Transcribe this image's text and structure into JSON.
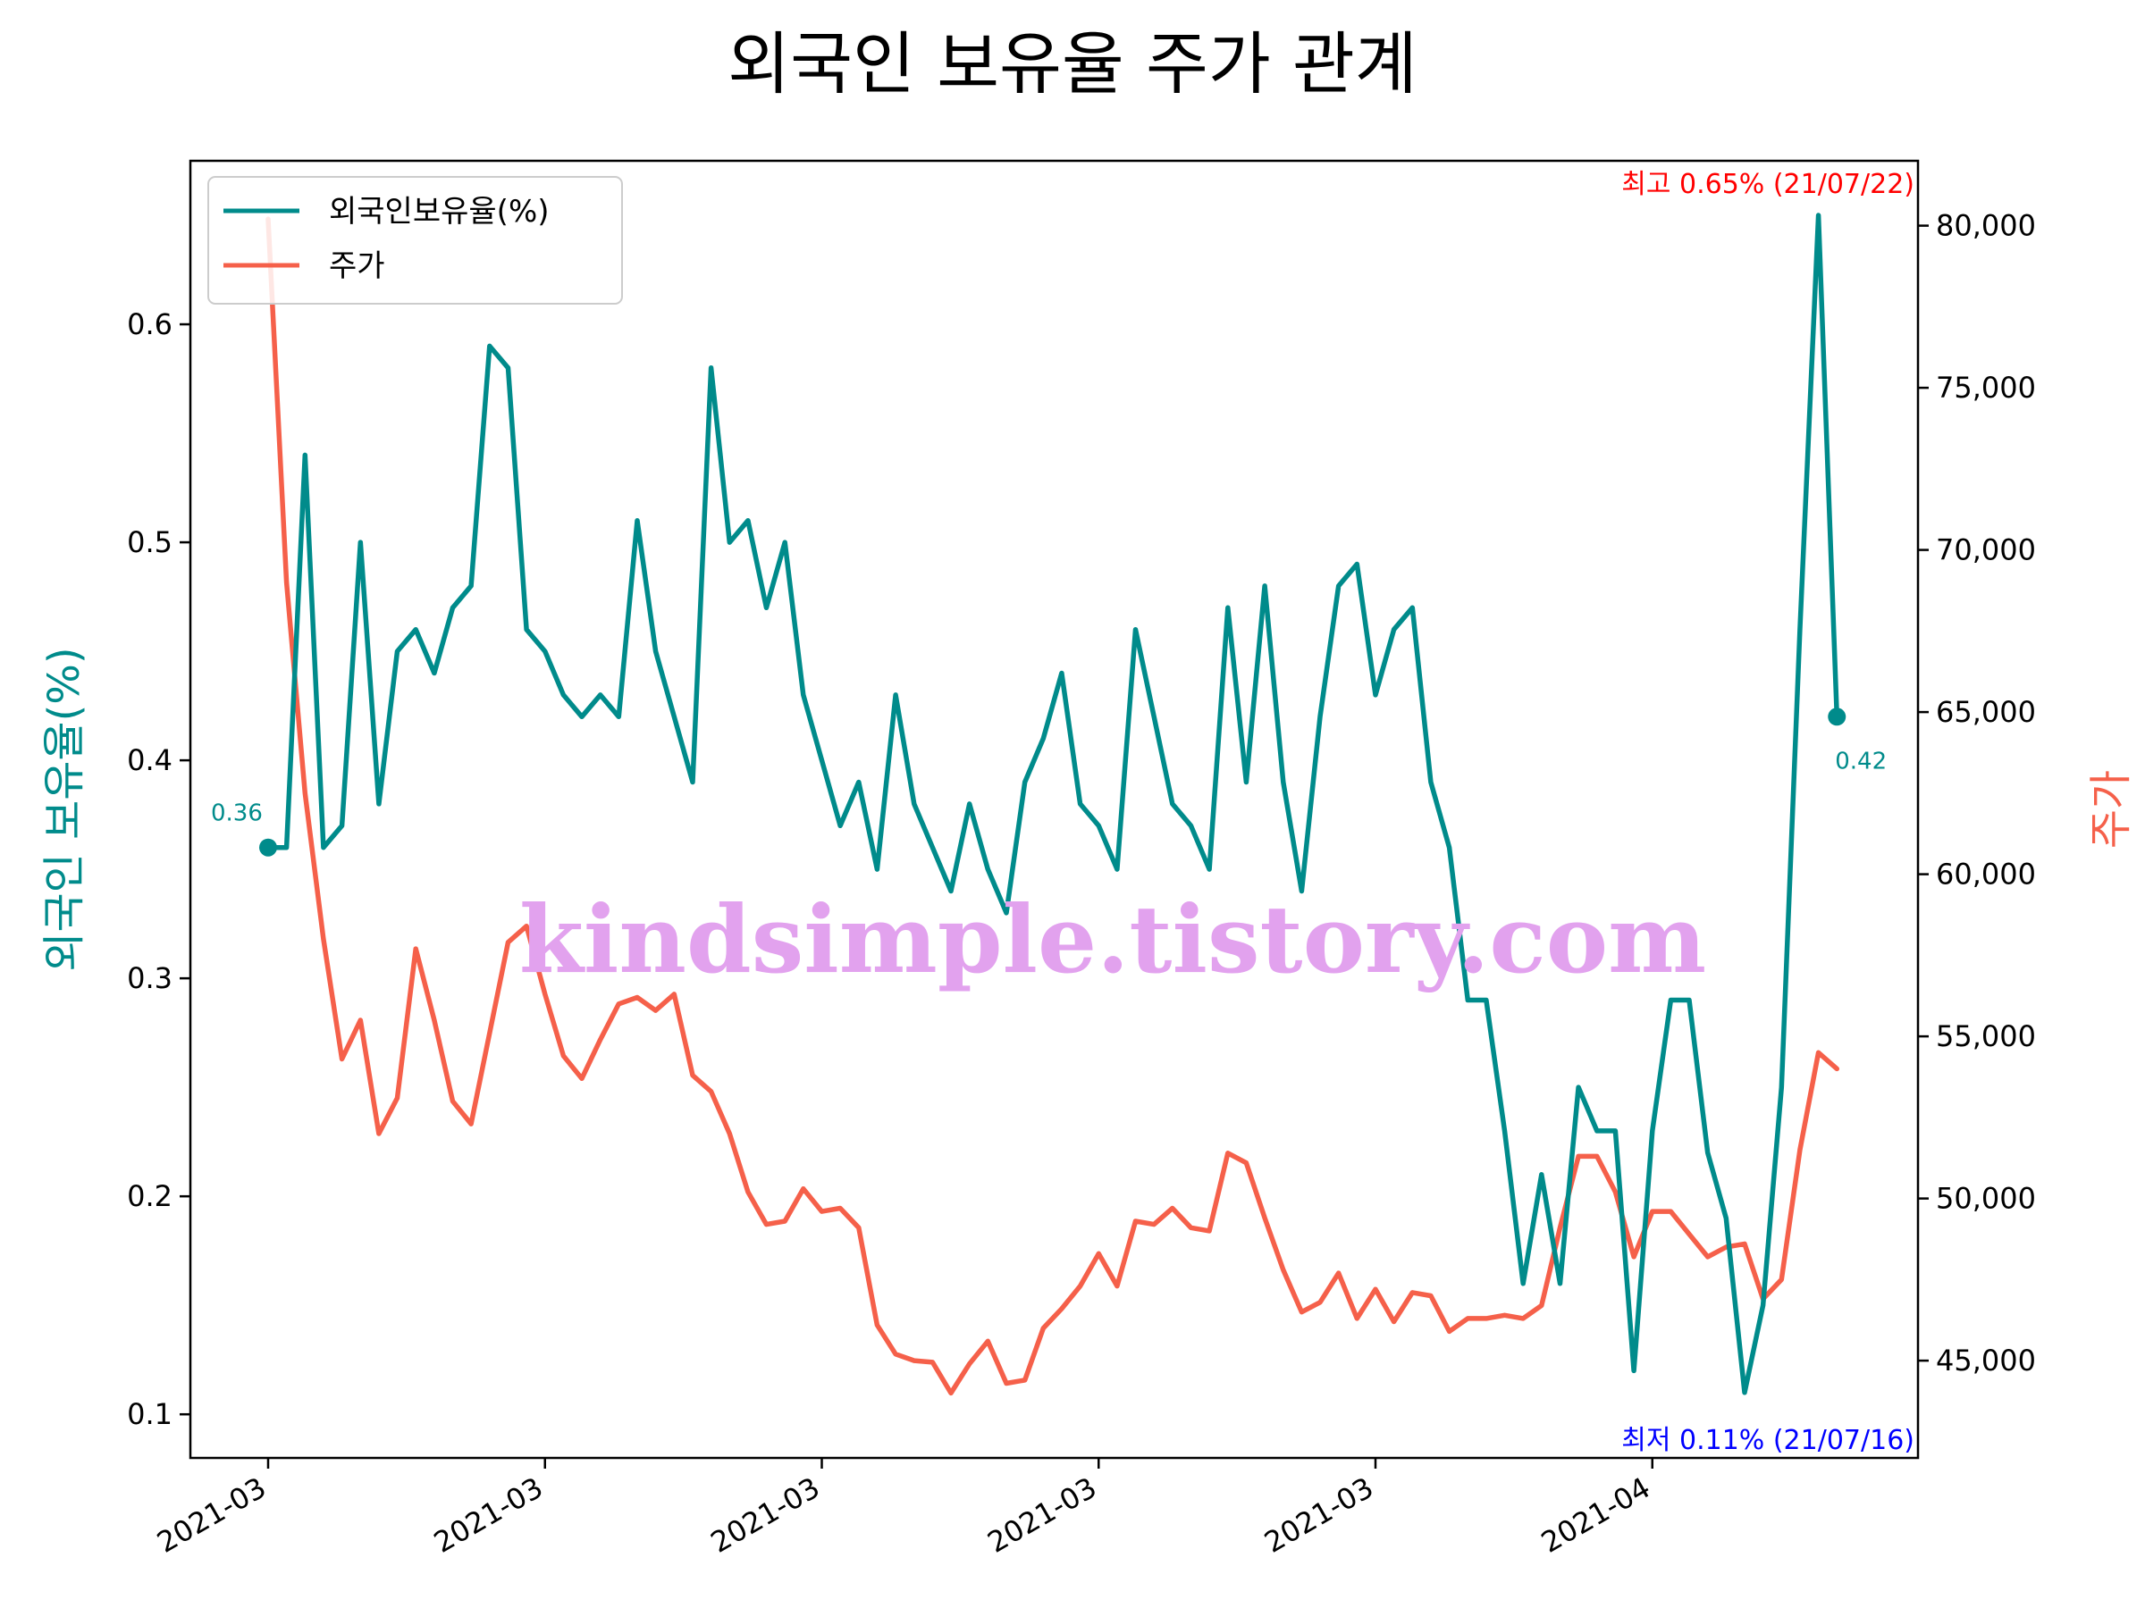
{
  "chart_data": {
    "type": "line",
    "title": "외국인 보유율 주가 관계",
    "ylabel_left": "외국인 보유율(%)",
    "ylabel_right": "주가",
    "x_tick_labels": [
      "2021-03",
      "2021-03",
      "2021-03",
      "2021-03",
      "2021-03",
      "2021-04"
    ],
    "ylim_left": [
      0.08,
      0.675
    ],
    "ylim_right": [
      42000,
      82000
    ],
    "left_ticks": [
      0.1,
      0.2,
      0.3,
      0.4,
      0.5,
      0.6
    ],
    "left_tick_labels": [
      "0.1",
      "0.2",
      "0.3",
      "0.4",
      "0.5",
      "0.6"
    ],
    "right_ticks": [
      45000,
      50000,
      55000,
      60000,
      65000,
      70000,
      75000,
      80000
    ],
    "right_tick_labels": [
      "45,000",
      "50,000",
      "55,000",
      "60,000",
      "65,000",
      "70,000",
      "75,000",
      "80,000"
    ],
    "legend_position": "upper-left",
    "grid": false,
    "series": [
      {
        "name": "외국인보유율(%)",
        "axis": "left",
        "color": "#008b8b",
        "values": [
          0.36,
          0.36,
          0.54,
          0.36,
          0.37,
          0.5,
          0.38,
          0.45,
          0.46,
          0.44,
          0.47,
          0.48,
          0.59,
          0.58,
          0.46,
          0.45,
          0.43,
          0.42,
          0.43,
          0.42,
          0.51,
          0.45,
          0.42,
          0.39,
          0.58,
          0.5,
          0.51,
          0.47,
          0.5,
          0.43,
          0.4,
          0.37,
          0.39,
          0.35,
          0.43,
          0.38,
          0.36,
          0.34,
          0.38,
          0.35,
          0.33,
          0.39,
          0.41,
          0.44,
          0.38,
          0.37,
          0.35,
          0.46,
          0.42,
          0.38,
          0.37,
          0.35,
          0.47,
          0.39,
          0.48,
          0.39,
          0.34,
          0.42,
          0.48,
          0.49,
          0.43,
          0.46,
          0.47,
          0.39,
          0.36,
          0.29,
          0.29,
          0.23,
          0.16,
          0.21,
          0.16,
          0.25,
          0.23,
          0.23,
          0.12,
          0.23,
          0.29,
          0.29,
          0.22,
          0.19,
          0.11,
          0.15,
          0.25,
          0.46,
          0.65,
          0.42
        ]
      },
      {
        "name": "주가",
        "axis": "right",
        "color": "#f5604a",
        "values": [
          80200,
          69000,
          62500,
          58000,
          54300,
          55500,
          52000,
          53100,
          57700,
          55500,
          53000,
          52300,
          55100,
          57900,
          58400,
          56300,
          54400,
          53700,
          54900,
          56000,
          56200,
          55800,
          56300,
          53800,
          53300,
          52000,
          50200,
          49200,
          49300,
          50300,
          49600,
          49700,
          49100,
          46100,
          45200,
          45000,
          44950,
          44000,
          44900,
          45600,
          44300,
          44400,
          46000,
          46600,
          47300,
          48300,
          47300,
          49300,
          49200,
          49700,
          49100,
          49000,
          51400,
          51100,
          49400,
          47800,
          46500,
          46800,
          47700,
          46300,
          47200,
          46200,
          47100,
          47000,
          45900,
          46300,
          46300,
          46400,
          46300,
          46700,
          49100,
          51300,
          51300,
          50200,
          48200,
          49600,
          49600,
          48900,
          48200,
          48500,
          48600,
          46900,
          47500,
          51500,
          54500,
          54000
        ]
      }
    ],
    "annotations": {
      "max_label_prefix": "최고",
      "max_label_value": "0.65% (21/07/22)",
      "max_color": "#ff0000",
      "min_label_prefix": "최저",
      "min_label_value": "0.11% (21/07/16)",
      "min_color": "#0000ff",
      "start_value_label": "0.36",
      "end_value_label": "0.42"
    },
    "watermark": "kindsimple.tistory.com"
  }
}
